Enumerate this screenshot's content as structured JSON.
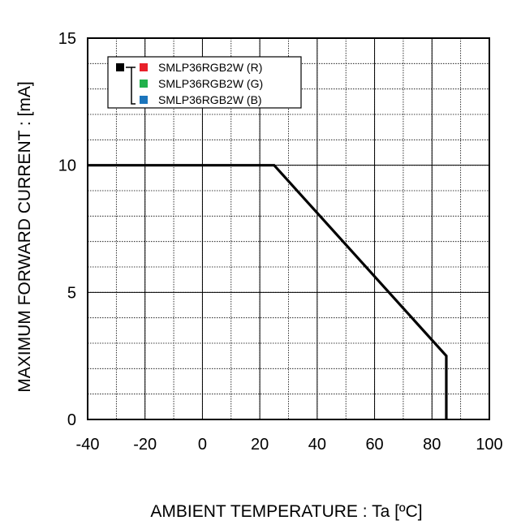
{
  "chart_data": {
    "type": "line",
    "title": "",
    "xlabel": "AMBIENT TEMPERATURE : Ta [ºC]",
    "ylabel": "MAXIMUM FORWARD CURRENT :  [mA]",
    "xlim": [
      -40,
      100
    ],
    "ylim": [
      0,
      15
    ],
    "xticks": [
      -40,
      -20,
      0,
      20,
      40,
      60,
      80,
      100
    ],
    "yticks": [
      0,
      5,
      10,
      15
    ],
    "x_minor_step": 10,
    "y_minor_step": 1,
    "grid": true,
    "legend_position": "top-left",
    "line_color": "#000000",
    "series": [
      {
        "x": [
          -40,
          25,
          85,
          85
        ],
        "y": [
          10,
          10,
          2.5,
          0
        ]
      }
    ],
    "legend": {
      "group_marker_color": "#000000",
      "items": [
        {
          "label": "SMLP36RGB2W (R)",
          "color": "#e8202a"
        },
        {
          "label": "SMLP36RGB2W (G)",
          "color": "#22b14c"
        },
        {
          "label": "SMLP36RGB2W (B)",
          "color": "#1c75bc"
        }
      ]
    }
  }
}
